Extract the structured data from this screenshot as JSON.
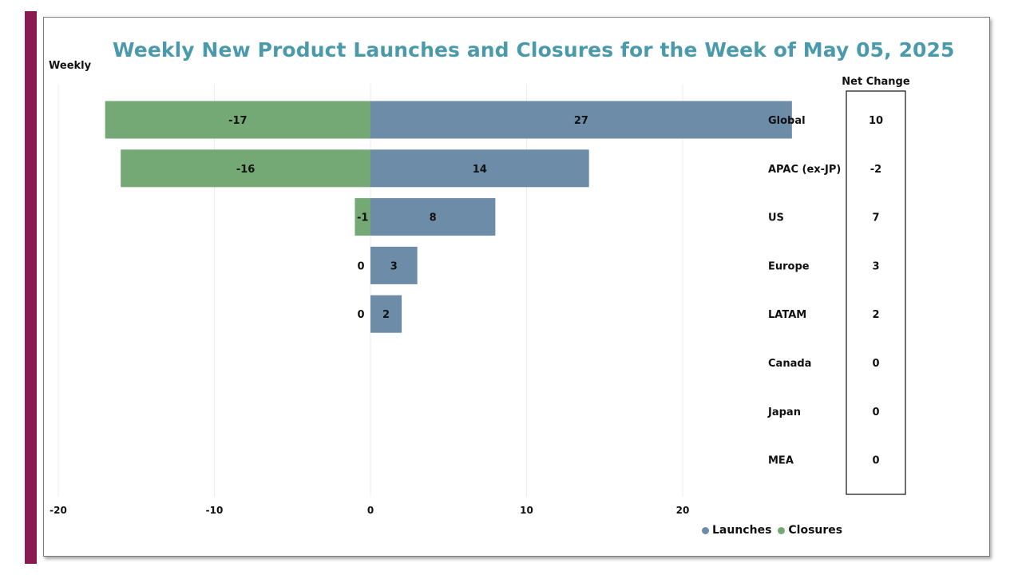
{
  "colors": {
    "accent_bar": "#8a1a52",
    "title": "#4a9aac",
    "launches": "#6c8ca7",
    "closures": "#74a874",
    "grid": "#ececec"
  },
  "chart_data": {
    "type": "bar",
    "orientation": "horizontal-diverging",
    "title": "Weekly New Product Launches and Closures for the Week of May 05, 2025",
    "ylabel": "Weekly",
    "categories": [
      "Global",
      "APAC (ex-JP)",
      "US",
      "Europe",
      "LATAM",
      "Canada",
      "Japan",
      "MEA"
    ],
    "series": [
      {
        "name": "Launches",
        "values": [
          27,
          14,
          8,
          3,
          2,
          0,
          0,
          0
        ]
      },
      {
        "name": "Closures",
        "values": [
          -17,
          -16,
          -1,
          0,
          0,
          0,
          0,
          0
        ]
      }
    ],
    "labels": {
      "Launches": [
        "27",
        "14",
        "8",
        "3",
        "2",
        "",
        "",
        ""
      ],
      "Closures": [
        "-17",
        "-16",
        "-1",
        "0",
        "0",
        "",
        "",
        ""
      ]
    },
    "xlim": [
      -20,
      25
    ],
    "xticks": [
      -20,
      -10,
      0,
      10,
      20
    ],
    "net_change_title": "Net Change",
    "net_change": [
      10,
      -2,
      7,
      3,
      2,
      0,
      0,
      0
    ],
    "legend": [
      "Launches",
      "Closures"
    ]
  }
}
